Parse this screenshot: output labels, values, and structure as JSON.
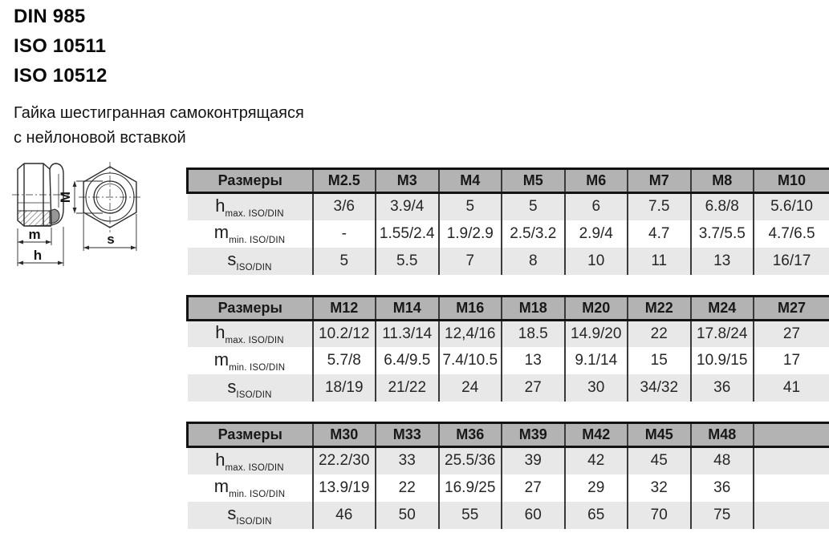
{
  "standards": [
    "DIN 985",
    "ISO 10511",
    "ISO 10512"
  ],
  "subtitle": {
    "line1": "Гайка шестигранная самоконтрящаяся",
    "line2": "с нейлоновой вставкой"
  },
  "drawing": {
    "labels": {
      "m": "m",
      "h": "h",
      "M": "M",
      "s": "s"
    }
  },
  "tables": [
    {
      "header": [
        "Размеры",
        "M2.5",
        "M3",
        "M4",
        "M5",
        "M6",
        "M7",
        "M8",
        "M10"
      ],
      "rows": [
        {
          "base": "h",
          "sub": "max. ISO/DIN",
          "values": [
            "3/6",
            "3.9/4",
            "5",
            "5",
            "6",
            "7.5",
            "6.8/8",
            "5.6/10"
          ]
        },
        {
          "base": "m",
          "sub": "min. ISO/DIN",
          "values": [
            "-",
            "1.55/2.4",
            "1.9/2.9",
            "2.5/3.2",
            "2.9/4",
            "4.7",
            "3.7/5.5",
            "4.7/6.5"
          ]
        },
        {
          "base": "s",
          "sub": "ISO/DIN",
          "values": [
            "5",
            "5.5",
            "7",
            "8",
            "10",
            "11",
            "13",
            "16/17"
          ]
        }
      ]
    },
    {
      "header": [
        "Размеры",
        "M12",
        "M14",
        "M16",
        "M18",
        "M20",
        "M22",
        "M24",
        "M27"
      ],
      "rows": [
        {
          "base": "h",
          "sub": "max. ISO/DIN",
          "values": [
            "10.2/12",
            "11.3/14",
            "12,4/16",
            "18.5",
            "14.9/20",
            "22",
            "17.8/24",
            "27"
          ]
        },
        {
          "base": "m",
          "sub": "min. ISO/DIN",
          "values": [
            "5.7/8",
            "6.4/9.5",
            "7.4/10.5",
            "13",
            "9.1/14",
            "15",
            "10.9/15",
            "17"
          ]
        },
        {
          "base": "s",
          "sub": "ISO/DIN",
          "values": [
            "18/19",
            "21/22",
            "24",
            "27",
            "30",
            "34/32",
            "36",
            "41"
          ]
        }
      ]
    },
    {
      "header": [
        "Размеры",
        "M30",
        "M33",
        "M36",
        "M39",
        "M42",
        "M45",
        "M48",
        ""
      ],
      "rows": [
        {
          "base": "h",
          "sub": "max. ISO/DIN",
          "values": [
            "22.2/30",
            "33",
            "25.5/36",
            "39",
            "42",
            "45",
            "48",
            ""
          ]
        },
        {
          "base": "m",
          "sub": "min. ISO/DIN",
          "values": [
            "13.9/19",
            "22",
            "16.9/25",
            "27",
            "29",
            "32",
            "36",
            ""
          ]
        },
        {
          "base": "s",
          "sub": "ISO/DIN",
          "values": [
            "46",
            "50",
            "55",
            "60",
            "65",
            "70",
            "75",
            ""
          ]
        }
      ]
    }
  ],
  "colors": {
    "header_bg": "#b3b3b3",
    "row_shaded_bg": "#e8e8e8",
    "row_plain_bg": "#ffffff",
    "border_dark": "#121212",
    "grid_line": "#3a3a3a",
    "text": "#262626"
  }
}
